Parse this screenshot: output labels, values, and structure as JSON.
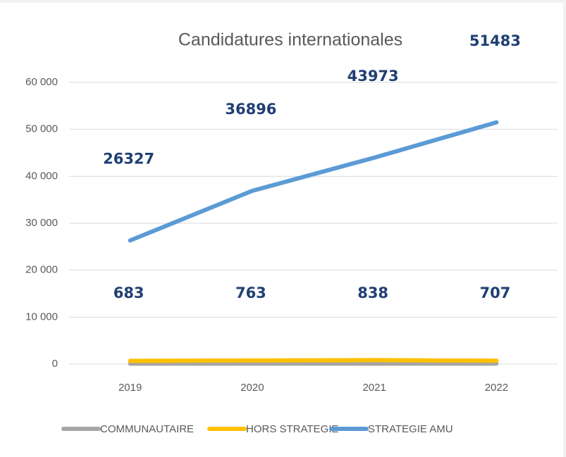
{
  "chart_data": {
    "type": "line",
    "title": "Candidatures internationales",
    "categories": [
      "2019",
      "2020",
      "2021",
      "2022"
    ],
    "series": [
      {
        "name": "COMMUNAUTAIRE",
        "color": "#a5a5a5",
        "values": [
          100,
          100,
          100,
          100
        ]
      },
      {
        "name": "HORS STRATEGIE",
        "color": "#ffc000",
        "values": [
          683,
          763,
          838,
          707
        ]
      },
      {
        "name": "STRATEGIE AMU",
        "color": "#5b9bd5",
        "values": [
          26327,
          36896,
          43973,
          51483
        ]
      }
    ],
    "ylim": [
      0,
      60000
    ],
    "yticks": [
      0,
      {
        "value": 10000,
        "label": "10 000"
      },
      {
        "value": 20000,
        "label": "20 000"
      },
      {
        "value": 30000,
        "label": "30 000"
      },
      {
        "value": 40000,
        "label": "40 000"
      },
      {
        "value": 50000,
        "label": "50 000"
      },
      {
        "value": 60000,
        "label": "60 000"
      }
    ],
    "grid": true,
    "legend": "bottom"
  }
}
